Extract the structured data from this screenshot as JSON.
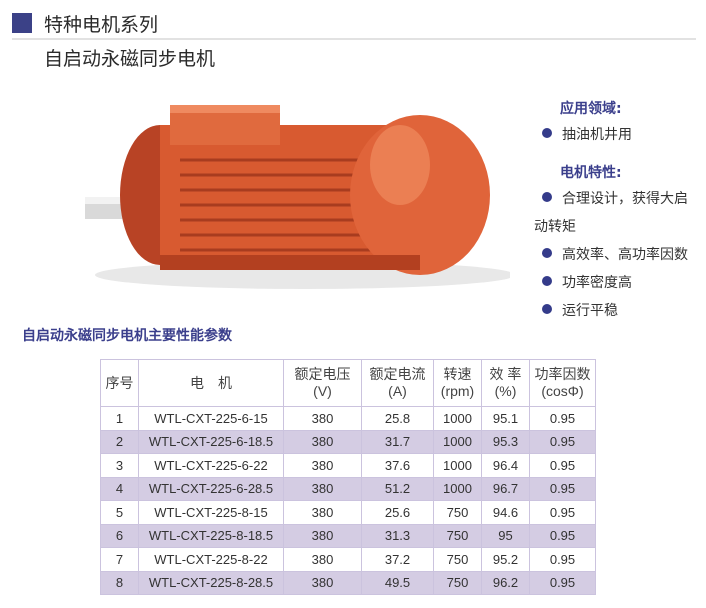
{
  "header": {
    "title": "特种电机系列",
    "subtitle": "自启动永磁同步电机",
    "accent_color": "#3b4187"
  },
  "side": {
    "application_heading": "应用领域:",
    "applications": [
      "抽油机井用"
    ],
    "features_heading": "电机特性:",
    "features": [
      "合理设计，获得大启",
      "高效率、高功率因数",
      "功率密度高",
      "运行平稳"
    ],
    "feature_continuation": "动转矩"
  },
  "table": {
    "title": "自启动永磁同步电机主要性能参数",
    "headers": [
      [
        "序号",
        ""
      ],
      [
        "电　机",
        ""
      ],
      [
        "额定电压",
        "(V)"
      ],
      [
        "额定电流",
        "(A)"
      ],
      [
        "转速",
        "(rpm)"
      ],
      [
        "效 率",
        "(%)"
      ],
      [
        "功率因数",
        "(cosΦ)"
      ]
    ],
    "rows": [
      [
        "1",
        "WTL-CXT-225-6-15",
        "380",
        "25.8",
        "1000",
        "95.1",
        "0.95"
      ],
      [
        "2",
        "WTL-CXT-225-6-18.5",
        "380",
        "31.7",
        "1000",
        "95.3",
        "0.95"
      ],
      [
        "3",
        "WTL-CXT-225-6-22",
        "380",
        "37.6",
        "1000",
        "96.4",
        "0.95"
      ],
      [
        "4",
        "WTL-CXT-225-6-28.5",
        "380",
        "51.2",
        "1000",
        "96.7",
        "0.95"
      ],
      [
        "5",
        "WTL-CXT-225-8-15",
        "380",
        "25.6",
        "750",
        "94.6",
        "0.95"
      ],
      [
        "6",
        "WTL-CXT-225-8-18.5",
        "380",
        "31.3",
        "750",
        "95",
        "0.95"
      ],
      [
        "7",
        "WTL-CXT-225-8-22",
        "380",
        "37.2",
        "750",
        "95.2",
        "0.95"
      ],
      [
        "8",
        "WTL-CXT-225-8-28.5",
        "380",
        "49.5",
        "750",
        "96.2",
        "0.95"
      ]
    ],
    "stripe_color": "#d4cce3"
  }
}
